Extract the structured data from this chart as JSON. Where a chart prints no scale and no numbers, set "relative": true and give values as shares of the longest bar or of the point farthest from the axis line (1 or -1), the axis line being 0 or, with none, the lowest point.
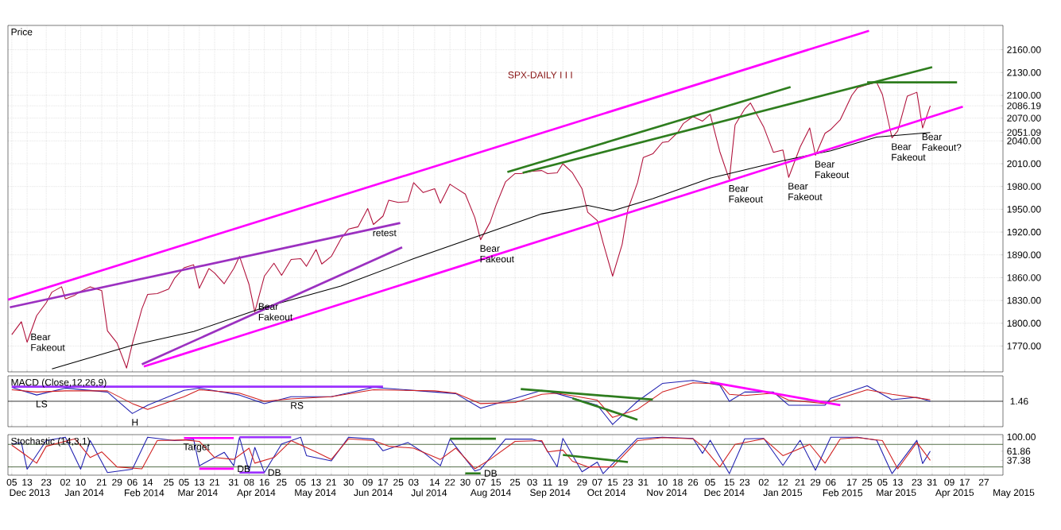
{
  "chart_data": [
    {
      "type": "line",
      "title": "Price",
      "subtitle": "SPX-DAILY  I I I",
      "xlim": [
        "2013-12-03",
        "2015-05-07"
      ],
      "ylim": [
        1736,
        2192
      ],
      "grid": true,
      "tick_labels": "y",
      "xticks": [
        "2013-12-05",
        "2013-12-13",
        "2013-12-23",
        "2014-01-02",
        "2014-01-10",
        "2014-01-21",
        "2014-01-29",
        "2014-02-06",
        "2014-02-14",
        "2014-02-25",
        "2014-03-05",
        "2014-03-13",
        "2014-03-21",
        "2014-03-31",
        "2014-04-08",
        "2014-04-16",
        "2014-04-25",
        "2014-05-05",
        "2014-05-13",
        "2014-05-21",
        "2014-05-30",
        "2014-06-09",
        "2014-06-17",
        "2014-06-25",
        "2014-07-03",
        "2014-07-14",
        "2014-07-22",
        "2014-07-30",
        "2014-08-07",
        "2014-08-15",
        "2014-08-25",
        "2014-09-03",
        "2014-09-11",
        "2014-09-19",
        "2014-09-29",
        "2014-10-07",
        "2014-10-15",
        "2014-10-23",
        "2014-10-31",
        "2014-11-10",
        "2014-11-18",
        "2014-11-26",
        "2014-12-05",
        "2014-12-15",
        "2014-12-23",
        "2015-01-02",
        "2015-01-12",
        "2015-01-21",
        "2015-01-29",
        "2015-02-06",
        "2015-02-17",
        "2015-02-25",
        "2015-03-05",
        "2015-03-13",
        "2015-03-23",
        "2015-03-31",
        "2015-04-09",
        "2015-04-17",
        "2015-04-27"
      ],
      "yticks": [
        {
          "value": 1770,
          "label": "1770.00"
        },
        {
          "value": 1800,
          "label": "1800.00"
        },
        {
          "value": 1830,
          "label": "1830.00"
        },
        {
          "value": 1860,
          "label": "1860.00"
        },
        {
          "value": 1890,
          "label": "1890.00"
        },
        {
          "value": 1920,
          "label": "1920.00"
        },
        {
          "value": 1950,
          "label": "1950.00"
        },
        {
          "value": 1980,
          "label": "1980.00"
        },
        {
          "value": 2010,
          "label": "2010.00"
        },
        {
          "value": 2040,
          "label": "2040.00"
        },
        {
          "value": 2051.09,
          "label": "2051.09"
        },
        {
          "value": 2070,
          "label": "2070.00"
        },
        {
          "value": 2086.19,
          "label": "2086.19"
        },
        {
          "value": 2100,
          "label": "2100.00"
        },
        {
          "value": 2130,
          "label": "2130.00"
        },
        {
          "value": 2160,
          "label": "2160.00"
        }
      ],
      "series": [
        {
          "color": "#b0103a",
          "x": [
            "2013-12-05",
            "2013-12-10",
            "2013-12-13",
            "2013-12-18",
            "2013-12-23",
            "2013-12-26",
            "2013-12-31",
            "2014-01-02",
            "2014-01-07",
            "2014-01-10",
            "2014-01-15",
            "2014-01-21",
            "2014-01-24",
            "2014-01-29",
            "2014-02-03",
            "2014-02-06",
            "2014-02-11",
            "2014-02-14",
            "2014-02-19",
            "2014-02-25",
            "2014-02-28",
            "2014-03-05",
            "2014-03-10",
            "2014-03-13",
            "2014-03-18",
            "2014-03-21",
            "2014-03-26",
            "2014-03-31",
            "2014-04-03",
            "2014-04-08",
            "2014-04-11",
            "2014-04-16",
            "2014-04-21",
            "2014-04-25",
            "2014-04-30",
            "2014-05-05",
            "2014-05-08",
            "2014-05-13",
            "2014-05-16",
            "2014-05-21",
            "2014-05-26",
            "2014-05-30",
            "2014-06-04",
            "2014-06-09",
            "2014-06-12",
            "2014-06-17",
            "2014-06-20",
            "2014-06-25",
            "2014-06-30",
            "2014-07-03",
            "2014-07-08",
            "2014-07-14",
            "2014-07-17",
            "2014-07-22",
            "2014-07-25",
            "2014-07-30",
            "2014-08-04",
            "2014-08-07",
            "2014-08-12",
            "2014-08-15",
            "2014-08-20",
            "2014-08-25",
            "2014-08-28",
            "2014-09-03",
            "2014-09-08",
            "2014-09-11",
            "2014-09-16",
            "2014-09-19",
            "2014-09-24",
            "2014-09-29",
            "2014-10-02",
            "2014-10-07",
            "2014-10-10",
            "2014-10-15",
            "2014-10-20",
            "2014-10-23",
            "2014-10-28",
            "2014-10-31",
            "2014-11-05",
            "2014-11-10",
            "2014-11-13",
            "2014-11-18",
            "2014-11-21",
            "2014-11-26",
            "2014-12-01",
            "2014-12-05",
            "2014-12-10",
            "2014-12-15",
            "2014-12-18",
            "2014-12-23",
            "2014-12-26",
            "2015-01-02",
            "2015-01-07",
            "2015-01-12",
            "2015-01-15",
            "2015-01-21",
            "2015-01-26",
            "2015-01-29",
            "2015-02-03",
            "2015-02-06",
            "2015-02-11",
            "2015-02-17",
            "2015-02-20",
            "2015-02-25",
            "2015-03-02",
            "2015-03-05",
            "2015-03-10",
            "2015-03-13",
            "2015-03-18",
            "2015-03-23",
            "2015-03-26",
            "2015-03-30"
          ],
          "values": [
            1785,
            1802,
            1775,
            1810,
            1827,
            1841,
            1848,
            1832,
            1837,
            1842,
            1848,
            1843,
            1790,
            1774,
            1741,
            1773,
            1819,
            1838,
            1839,
            1845,
            1859,
            1873,
            1877,
            1846,
            1872,
            1866,
            1852,
            1872,
            1888,
            1851,
            1815,
            1862,
            1879,
            1863,
            1884,
            1885,
            1875,
            1897,
            1878,
            1888,
            1911,
            1924,
            1927,
            1951,
            1930,
            1941,
            1962,
            1959,
            1960,
            1985,
            1972,
            1977,
            1958,
            1983,
            1978,
            1970,
            1939,
            1910,
            1933,
            1955,
            1986,
            1997,
            1997,
            2000,
            2001,
            1997,
            1998,
            2010,
            1998,
            1977,
            1946,
            1935,
            1906,
            1862,
            1904,
            1950,
            1985,
            2018,
            2023,
            2038,
            2039,
            2051,
            2063,
            2072,
            2066,
            2075,
            2026,
            1989,
            2061,
            2082,
            2090,
            2058,
            2025,
            2028,
            1992,
            2032,
            2057,
            2021,
            2050,
            2055,
            2068,
            2100,
            2110,
            2114,
            2117,
            2101,
            2044,
            2053,
            2099,
            2104,
            2057,
            2086.19
          ]
        },
        {
          "color": "#000000",
          "x": [
            "2013-12-26",
            "2014-02-06",
            "2014-03-10",
            "2014-04-16",
            "2014-05-26",
            "2014-07-03",
            "2014-08-07",
            "2014-09-08",
            "2014-10-02",
            "2014-10-15",
            "2014-11-05",
            "2014-12-05",
            "2015-01-12",
            "2015-02-06",
            "2015-03-02",
            "2015-03-30"
          ],
          "values": [
            1740,
            1771,
            1789,
            1821,
            1849,
            1885,
            1916,
            1944,
            1955,
            1948,
            1964,
            1991,
            2014,
            2027,
            2045,
            2051.09
          ]
        },
        {
          "color": "#ff00ff",
          "x": [
            "2013-12-03",
            "2015-02-26"
          ],
          "values": [
            1831,
            2185
          ]
        },
        {
          "color": "#ff00ff",
          "x": [
            "2014-02-12",
            "2015-04-16"
          ],
          "values": [
            1743,
            2085
          ]
        },
        {
          "color": "#2e7d1e",
          "x": [
            "2014-08-21",
            "2015-01-16"
          ],
          "values": [
            1999,
            2111
          ]
        },
        {
          "color": "#2e7d1e",
          "x": [
            "2014-08-29",
            "2015-03-31"
          ],
          "values": [
            1998,
            2137
          ]
        },
        {
          "color": "#2e7d1e",
          "x": [
            "2015-02-25",
            "2015-04-13"
          ],
          "values": [
            2117,
            2117
          ]
        },
        {
          "color": "#9b30c0",
          "x": [
            "2013-12-04",
            "2014-06-26"
          ],
          "values": [
            1821,
            1932
          ]
        },
        {
          "color": "#9b30c0",
          "x": [
            "2014-02-11",
            "2014-06-27"
          ],
          "values": [
            1746,
            1900
          ]
        }
      ],
      "annotations": [
        {
          "text": "Bear Fakeout",
          "x": "2013-12-13",
          "y": 1775
        },
        {
          "text": "Bear Fakeout",
          "x": "2014-04-11",
          "y": 1815
        },
        {
          "text": "retest",
          "x": "2014-06-12",
          "y": 1930
        },
        {
          "text": "Bear Fakeout",
          "x": "2014-08-07",
          "y": 1910
        },
        {
          "text": "Bear Fakeout",
          "x": "2014-12-15",
          "y": 1989
        },
        {
          "text": "Bear Fakeout",
          "x": "2015-01-15",
          "y": 1992
        },
        {
          "text": "Bear Fakeout",
          "x": "2015-01-29",
          "y": 2021
        },
        {
          "text": "Bear Fakeout",
          "x": "2015-03-10",
          "y": 2044
        },
        {
          "text": "Bear Fakeout?",
          "x": "2015-03-26",
          "y": 2057
        }
      ]
    },
    {
      "type": "line",
      "title": "MACD (Close,12,26,9)",
      "relative": true,
      "xlim": [
        "2013-12-03",
        "2015-05-07"
      ],
      "grid": "x",
      "tick_labels": false,
      "xticks": [
        "2013-12-05",
        "2013-12-13",
        "2013-12-23",
        "2014-01-02",
        "2014-01-10",
        "2014-01-21",
        "2014-01-29",
        "2014-02-06",
        "2014-02-14",
        "2014-02-25",
        "2014-03-05",
        "2014-03-13",
        "2014-03-21",
        "2014-03-31",
        "2014-04-08",
        "2014-04-16",
        "2014-04-25",
        "2014-05-05",
        "2014-05-13",
        "2014-05-21",
        "2014-05-30",
        "2014-06-09",
        "2014-06-17",
        "2014-06-25",
        "2014-07-03",
        "2014-07-14",
        "2014-07-22",
        "2014-07-30",
        "2014-08-07",
        "2014-08-15",
        "2014-08-25",
        "2014-09-03",
        "2014-09-11",
        "2014-09-19",
        "2014-09-29",
        "2014-10-07",
        "2014-10-15",
        "2014-10-23",
        "2014-10-31",
        "2014-11-10",
        "2014-11-18",
        "2014-11-26",
        "2014-12-05",
        "2014-12-15",
        "2014-12-23",
        "2015-01-02",
        "2015-01-12",
        "2015-01-21",
        "2015-01-29",
        "2015-02-06",
        "2015-02-17",
        "2015-02-25",
        "2015-03-05",
        "2015-03-13",
        "2015-03-23",
        "2015-03-31",
        "2015-04-09",
        "2015-04-17",
        "2015-04-27"
      ],
      "series": [
        {
          "color": "#1f1fb0",
          "x": [
            "2013-12-05",
            "2013-12-18",
            "2014-01-02",
            "2014-01-24",
            "2014-02-06",
            "2014-02-14",
            "2014-03-05",
            "2014-03-13",
            "2014-04-03",
            "2014-04-16",
            "2014-04-30",
            "2014-05-21",
            "2014-06-12",
            "2014-07-14",
            "2014-07-25",
            "2014-08-07",
            "2014-08-25",
            "2014-09-08",
            "2014-09-16",
            "2014-10-07",
            "2014-10-15",
            "2014-10-28",
            "2014-11-10",
            "2014-11-26",
            "2014-12-10",
            "2014-12-15",
            "2014-12-23",
            "2015-01-07",
            "2015-01-15",
            "2015-02-03",
            "2015-02-06",
            "2015-02-25",
            "2015-03-10",
            "2015-03-23",
            "2015-03-30"
          ],
          "values": [
            0.6,
            0.27,
            0.57,
            0.4,
            -0.53,
            -0.17,
            0.47,
            0.57,
            0.27,
            -0.1,
            0.2,
            0.2,
            0.6,
            0.4,
            0.33,
            -0.3,
            0.13,
            0.47,
            0.33,
            -0.17,
            -1,
            0,
            0.77,
            0.9,
            0.7,
            0,
            0.4,
            0.4,
            -0.17,
            -0.17,
            0.13,
            0.67,
            0.07,
            0.17,
            0
          ]
        },
        {
          "color": "#d02020",
          "x": [
            "2013-12-05",
            "2013-12-18",
            "2014-01-02",
            "2014-01-24",
            "2014-02-06",
            "2014-02-14",
            "2014-03-05",
            "2014-03-13",
            "2014-04-03",
            "2014-04-16",
            "2014-04-30",
            "2014-05-21",
            "2014-06-12",
            "2014-07-14",
            "2014-07-25",
            "2014-08-07",
            "2014-08-25",
            "2014-09-08",
            "2014-09-16",
            "2014-10-07",
            "2014-10-15",
            "2014-10-28",
            "2014-11-10",
            "2014-11-26",
            "2014-12-10",
            "2014-12-15",
            "2014-12-23",
            "2015-01-07",
            "2015-01-15",
            "2015-02-03",
            "2015-02-06",
            "2015-02-25",
            "2015-03-10",
            "2015-03-23",
            "2015-03-30"
          ],
          "values": [
            0.5,
            0.4,
            0.45,
            0.45,
            -0.1,
            -0.35,
            0.2,
            0.5,
            0.35,
            0.0,
            0.1,
            0.2,
            0.5,
            0.45,
            0.35,
            -0.1,
            -0.05,
            0.3,
            0.35,
            0.05,
            -0.7,
            -0.35,
            0.4,
            0.8,
            0.75,
            0.3,
            0.25,
            0.35,
            0.05,
            -0.1,
            0.0,
            0.5,
            0.3,
            0.15,
            0.07
          ]
        },
        {
          "color": "#9b30ff",
          "x": [
            "2013-12-05",
            "2014-06-17"
          ],
          "values": [
            0.63,
            0.63
          ]
        },
        {
          "color": "#2e7d1e",
          "x": [
            "2014-08-28",
            "2014-11-05"
          ],
          "values": [
            0.53,
            0.07
          ]
        },
        {
          "color": "#2e7d1e",
          "x": [
            "2014-09-24",
            "2014-10-28"
          ],
          "values": [
            0.13,
            -0.8
          ]
        },
        {
          "color": "#ff00ff",
          "x": [
            "2014-12-05",
            "2015-02-11"
          ],
          "values": [
            0.83,
            -0.17
          ]
        }
      ],
      "annotations": [
        {
          "text": "LS",
          "x": "2013-12-18",
          "y": 0.27
        },
        {
          "text": "H",
          "x": "2014-02-06",
          "y": -0.53
        },
        {
          "text": "RS",
          "x": "2014-04-30",
          "y": 0.2
        },
        "1.46"
      ]
    },
    {
      "type": "line",
      "title": "Stochastic (14,3,1)",
      "xlim": [
        "2013-12-03",
        "2015-05-07"
      ],
      "ylim": [
        -2,
        106
      ],
      "grid": "x",
      "xticks": [
        {
          "value": "2013-12-05",
          "label": "05"
        },
        {
          "value": "2013-12-13",
          "label": "13"
        },
        {
          "value": "2013-12-23",
          "label": "23"
        },
        {
          "value": "2014-01-02",
          "label": "02"
        },
        {
          "value": "2014-01-10",
          "label": "10"
        },
        {
          "value": "2014-01-21",
          "label": "21"
        },
        {
          "value": "2014-01-29",
          "label": "29"
        },
        {
          "value": "2014-02-06",
          "label": "06"
        },
        {
          "value": "2014-02-14",
          "label": "14"
        },
        {
          "value": "2014-02-25",
          "label": "25"
        },
        {
          "value": "2014-03-05",
          "label": "05"
        },
        {
          "value": "2014-03-13",
          "label": "13"
        },
        {
          "value": "2014-03-21",
          "label": "21"
        },
        {
          "value": "2014-03-31",
          "label": "31"
        },
        {
          "value": "2014-04-08",
          "label": "08"
        },
        {
          "value": "2014-04-16",
          "label": "16"
        },
        {
          "value": "2014-04-25",
          "label": "25"
        },
        {
          "value": "2014-05-05",
          "label": "05"
        },
        {
          "value": "2014-05-13",
          "label": "13"
        },
        {
          "value": "2014-05-21",
          "label": "21"
        },
        {
          "value": "2014-05-30",
          "label": "30"
        },
        {
          "value": "2014-06-09",
          "label": "09"
        },
        {
          "value": "2014-06-17",
          "label": "17"
        },
        {
          "value": "2014-06-25",
          "label": "25"
        },
        {
          "value": "2014-07-03",
          "label": "03"
        },
        {
          "value": "2014-07-14",
          "label": "14"
        },
        {
          "value": "2014-07-22",
          "label": "22"
        },
        {
          "value": "2014-07-30",
          "label": "30"
        },
        {
          "value": "2014-08-07",
          "label": "07"
        },
        {
          "value": "2014-08-15",
          "label": "15"
        },
        {
          "value": "2014-08-25",
          "label": "25"
        },
        {
          "value": "2014-09-03",
          "label": "03"
        },
        {
          "value": "2014-09-11",
          "label": "11"
        },
        {
          "value": "2014-09-19",
          "label": "19"
        },
        {
          "value": "2014-09-29",
          "label": "29"
        },
        {
          "value": "2014-10-07",
          "label": "07"
        },
        {
          "value": "2014-10-15",
          "label": "15"
        },
        {
          "value": "2014-10-23",
          "label": "23"
        },
        {
          "value": "2014-10-31",
          "label": "31"
        },
        {
          "value": "2014-11-10",
          "label": "10"
        },
        {
          "value": "2014-11-18",
          "label": "18"
        },
        {
          "value": "2014-11-26",
          "label": "26"
        },
        {
          "value": "2014-12-05",
          "label": "05"
        },
        {
          "value": "2014-12-15",
          "label": "15"
        },
        {
          "value": "2014-12-23",
          "label": "23"
        },
        {
          "value": "2015-01-02",
          "label": "02"
        },
        {
          "value": "2015-01-12",
          "label": "12"
        },
        {
          "value": "2015-01-21",
          "label": "21"
        },
        {
          "value": "2015-01-29",
          "label": "29"
        },
        {
          "value": "2015-02-06",
          "label": "06"
        },
        {
          "value": "2015-02-17",
          "label": "17"
        },
        {
          "value": "2015-02-25",
          "label": "25"
        },
        {
          "value": "2015-03-05",
          "label": "05"
        },
        {
          "value": "2015-03-13",
          "label": "13"
        },
        {
          "value": "2015-03-23",
          "label": "23"
        },
        {
          "value": "2015-03-31",
          "label": "31"
        },
        {
          "value": "2015-04-09",
          "label": "09"
        },
        {
          "value": "2015-04-17",
          "label": "17"
        },
        {
          "value": "2015-04-27",
          "label": "27"
        }
      ],
      "yticks": [
        {
          "value": 37.38,
          "label": "37.38"
        },
        {
          "value": 61.86,
          "label": "61.86"
        },
        {
          "value": 100,
          "label": "100.00"
        }
      ],
      "ref_lines": [
        {
          "axis": "y",
          "value": 20,
          "color": "#2a4a1a"
        },
        {
          "axis": "y",
          "value": 80,
          "color": "#2a4a1a"
        }
      ],
      "series": [
        {
          "color": "#1f1fb0",
          "x": [
            "2013-12-05",
            "2013-12-10",
            "2013-12-13",
            "2013-12-23",
            "2014-01-02",
            "2014-01-10",
            "2014-01-15",
            "2014-01-24",
            "2014-02-06",
            "2014-02-14",
            "2014-02-28",
            "2014-03-10",
            "2014-03-13",
            "2014-03-26",
            "2014-03-31",
            "2014-04-03",
            "2014-04-08",
            "2014-04-11",
            "2014-04-16",
            "2014-04-25",
            "2014-05-05",
            "2014-05-08",
            "2014-05-21",
            "2014-05-30",
            "2014-06-12",
            "2014-06-17",
            "2014-06-30",
            "2014-07-08",
            "2014-07-17",
            "2014-07-22",
            "2014-08-04",
            "2014-08-07",
            "2014-08-20",
            "2014-09-03",
            "2014-09-08",
            "2014-09-16",
            "2014-09-19",
            "2014-09-29",
            "2014-10-07",
            "2014-10-10",
            "2014-10-28",
            "2014-11-10",
            "2014-11-26",
            "2014-12-01",
            "2014-12-05",
            "2014-12-15",
            "2014-12-23",
            "2015-01-02",
            "2015-01-12",
            "2015-01-21",
            "2015-01-29",
            "2015-02-06",
            "2015-02-20",
            "2015-03-02",
            "2015-03-10",
            "2015-03-23",
            "2015-03-26",
            "2015-03-30"
          ],
          "values": [
            81,
            85,
            14,
            90,
            99,
            14,
            90,
            5,
            14,
            99,
            90,
            94,
            23,
            59,
            23,
            99,
            9,
            72,
            5,
            81,
            99,
            50,
            36,
            99,
            94,
            63,
            85,
            59,
            23,
            94,
            9,
            14,
            94,
            94,
            87,
            20,
            96,
            7,
            33,
            2,
            96,
            99,
            96,
            56,
            91,
            2,
            95,
            96,
            24,
            91,
            11,
            99,
            99,
            91,
            2,
            91,
            29,
            61.86
          ]
        },
        {
          "color": "#d02020",
          "x": [
            "2013-12-05",
            "2013-12-10",
            "2013-12-18",
            "2013-12-23",
            "2014-01-07",
            "2014-01-15",
            "2014-01-21",
            "2014-01-29",
            "2014-02-11",
            "2014-02-19",
            "2014-03-05",
            "2014-03-13",
            "2014-03-21",
            "2014-03-31",
            "2014-04-08",
            "2014-04-11",
            "2014-04-21",
            "2014-04-30",
            "2014-05-13",
            "2014-05-21",
            "2014-05-30",
            "2014-06-12",
            "2014-06-20",
            "2014-07-03",
            "2014-07-17",
            "2014-07-25",
            "2014-08-04",
            "2014-08-12",
            "2014-08-25",
            "2014-09-08",
            "2014-09-11",
            "2014-09-19",
            "2014-09-24",
            "2014-10-02",
            "2014-10-15",
            "2014-10-28",
            "2014-11-10",
            "2014-11-26",
            "2014-12-01",
            "2014-12-10",
            "2014-12-18",
            "2015-01-02",
            "2015-01-12",
            "2015-01-26",
            "2015-02-03",
            "2015-02-11",
            "2015-02-20",
            "2015-03-05",
            "2015-03-13",
            "2015-03-23",
            "2015-03-30"
          ],
          "values": [
            78,
            60,
            30,
            75,
            95,
            45,
            60,
            20,
            15,
            90,
            92,
            88,
            45,
            40,
            70,
            30,
            45,
            90,
            60,
            40,
            95,
            90,
            75,
            70,
            40,
            70,
            15,
            40,
            88,
            90,
            60,
            65,
            35,
            20,
            20,
            90,
            98,
            95,
            75,
            20,
            80,
            95,
            50,
            80,
            30,
            95,
            98,
            90,
            15,
            85,
            37.38
          ]
        },
        {
          "color": "#ff00ff",
          "x": [
            "2014-03-05",
            "2014-03-31"
          ],
          "values": [
            97,
            97
          ]
        },
        {
          "color": "#ff00ff",
          "x": [
            "2014-03-13",
            "2014-03-31"
          ],
          "values": [
            15,
            15
          ]
        },
        {
          "color": "#9b30ff",
          "x": [
            "2014-04-03",
            "2014-04-30"
          ],
          "values": [
            99,
            99
          ]
        },
        {
          "color": "#9b30ff",
          "x": [
            "2014-04-03",
            "2014-04-16"
          ],
          "values": [
            5,
            5
          ]
        },
        {
          "color": "#2e7d1e",
          "x": [
            "2014-07-22",
            "2014-08-15"
          ],
          "values": [
            95,
            95
          ]
        },
        {
          "color": "#2e7d1e",
          "x": [
            "2014-07-30",
            "2014-08-07"
          ],
          "values": [
            3,
            3
          ]
        },
        {
          "color": "#2e7d1e",
          "x": [
            "2014-09-19",
            "2014-10-23"
          ],
          "values": [
            52,
            33
          ]
        }
      ],
      "annotations": [
        {
          "text": "Target",
          "x": "2014-03-05",
          "y": 97
        },
        {
          "text": "DB",
          "x": "2014-03-31",
          "y": 15
        },
        {
          "text": "DB",
          "x": "2014-04-16",
          "y": 5
        },
        {
          "text": "DB",
          "x": "2014-08-07",
          "y": 3
        },
        "Dec 2013",
        "Jan 2014",
        "Feb 2014",
        "Mar 2014",
        "Apr 2014",
        "May 2014",
        "Jun 2014",
        "Jul 2014",
        "Aug 2014",
        "Sep 2014",
        "Oct 2014",
        "Nov 2014",
        "Dec 2014",
        "Jan 2015",
        "Feb 2015",
        "Mar 2015",
        "Apr 2015",
        "May 2015"
      ]
    }
  ]
}
